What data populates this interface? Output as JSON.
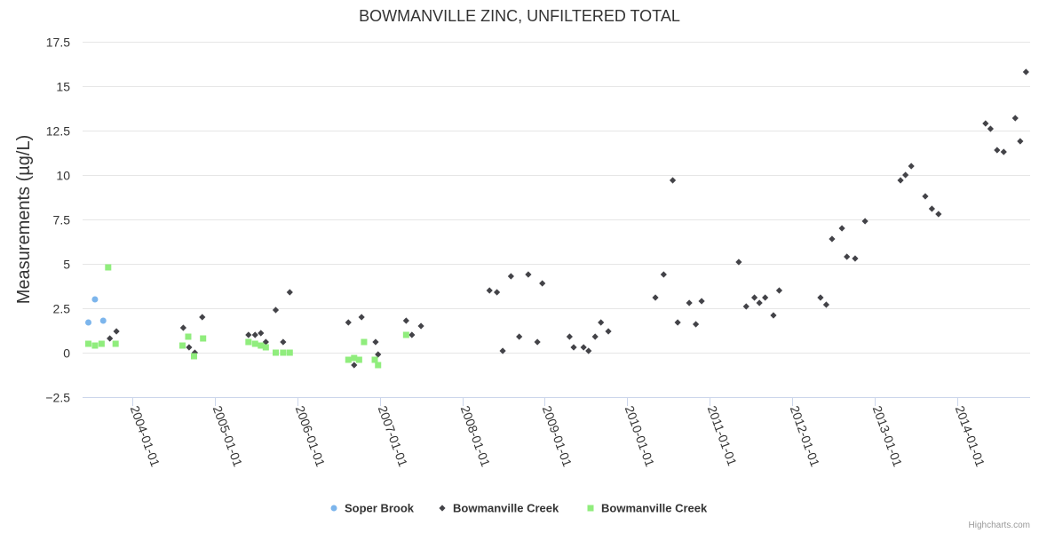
{
  "chart_data": {
    "type": "scatter",
    "title": "BOWMANVILLE ZINC, UNFILTERED TOTAL",
    "ylabel": "Measurements (µg/L)",
    "xlabel": "",
    "ylim": [
      -2.5,
      17.5
    ],
    "yticks": [
      -2.5,
      0,
      2.5,
      5,
      7.5,
      10,
      12.5,
      15,
      17.5
    ],
    "ytick_labels": [
      "−2.5",
      "0",
      "2.5",
      "5",
      "7.5",
      "10",
      "12.5",
      "15",
      "17.5"
    ],
    "xlim": [
      2003.4,
      2014.88
    ],
    "xticks": [
      2004,
      2005,
      2006,
      2007,
      2008,
      2009,
      2010,
      2011,
      2012,
      2013,
      2014
    ],
    "xtick_labels": [
      "2004-01-01",
      "2005-01-01",
      "2006-01-01",
      "2007-01-01",
      "2008-01-01",
      "2009-01-01",
      "2010-01-01",
      "2011-01-01",
      "2012-01-01",
      "2013-01-01",
      "2014-01-01"
    ],
    "grid": true,
    "legend_position": "bottom",
    "credits": "Highcharts.com",
    "series": [
      {
        "name": "Soper Brook",
        "color": "#7cb5ec",
        "marker": "circle",
        "x": [
          2003.47,
          2003.55,
          2003.65
        ],
        "y": [
          1.7,
          3.0,
          1.8
        ]
      },
      {
        "name": "Bowmanville Creek",
        "color": "#434348",
        "marker": "diamond",
        "x": [
          2003.73,
          2003.81,
          2004.62,
          2004.69,
          2004.76,
          2004.85,
          2005.41,
          2005.49,
          2005.56,
          2005.62,
          2005.74,
          2005.83,
          2005.91,
          2006.62,
          2006.69,
          2006.78,
          2006.95,
          2006.98,
          2007.32,
          2007.39,
          2007.5,
          2008.33,
          2008.42,
          2008.49,
          2008.59,
          2008.69,
          2008.8,
          2008.91,
          2008.97,
          2009.3,
          2009.35,
          2009.47,
          2009.53,
          2009.61,
          2009.68,
          2009.77,
          2010.34,
          2010.44,
          2010.55,
          2010.61,
          2010.75,
          2010.83,
          2010.9,
          2011.35,
          2011.44,
          2011.54,
          2011.6,
          2011.67,
          2011.77,
          2011.84,
          2012.34,
          2012.41,
          2012.48,
          2012.6,
          2012.66,
          2012.76,
          2012.88,
          2013.31,
          2013.37,
          2013.44,
          2013.61,
          2013.69,
          2013.77,
          2014.34,
          2014.4,
          2014.48,
          2014.56,
          2014.7,
          2014.76,
          2014.83
        ],
        "y": [
          0.8,
          1.2,
          1.4,
          0.3,
          0.0,
          2.0,
          1.0,
          1.0,
          1.1,
          0.6,
          2.4,
          0.6,
          3.4,
          1.7,
          -0.7,
          2.0,
          0.6,
          -0.1,
          1.8,
          1.0,
          1.5,
          3.5,
          3.4,
          0.1,
          4.3,
          0.9,
          4.4,
          0.6,
          3.9,
          0.9,
          0.3,
          0.3,
          0.1,
          0.9,
          1.7,
          1.2,
          3.1,
          4.4,
          9.7,
          1.7,
          2.8,
          1.6,
          2.9,
          5.1,
          2.6,
          3.1,
          2.8,
          3.1,
          2.1,
          3.5,
          3.1,
          2.7,
          6.4,
          7.0,
          5.4,
          5.3,
          7.4,
          9.7,
          10.0,
          10.5,
          8.8,
          8.1,
          7.8,
          12.9,
          12.6,
          11.4,
          11.3,
          13.2,
          11.9,
          15.8
        ]
      },
      {
        "name": "Bowmanville Creek",
        "color": "#90ed7d",
        "marker": "square",
        "x": [
          2003.47,
          2003.55,
          2003.63,
          2003.71,
          2003.8,
          2004.61,
          2004.68,
          2004.75,
          2004.86,
          2005.41,
          2005.49,
          2005.56,
          2005.62,
          2005.74,
          2005.83,
          2005.91,
          2006.62,
          2006.69,
          2006.75,
          2006.81,
          2006.94,
          2006.98,
          2007.32
        ],
        "y": [
          0.5,
          0.4,
          0.5,
          4.8,
          0.5,
          0.4,
          0.9,
          -0.2,
          0.8,
          0.6,
          0.5,
          0.4,
          0.3,
          0.0,
          0.0,
          0.0,
          -0.4,
          -0.3,
          -0.4,
          0.6,
          -0.4,
          -0.7,
          1.0
        ]
      }
    ]
  }
}
